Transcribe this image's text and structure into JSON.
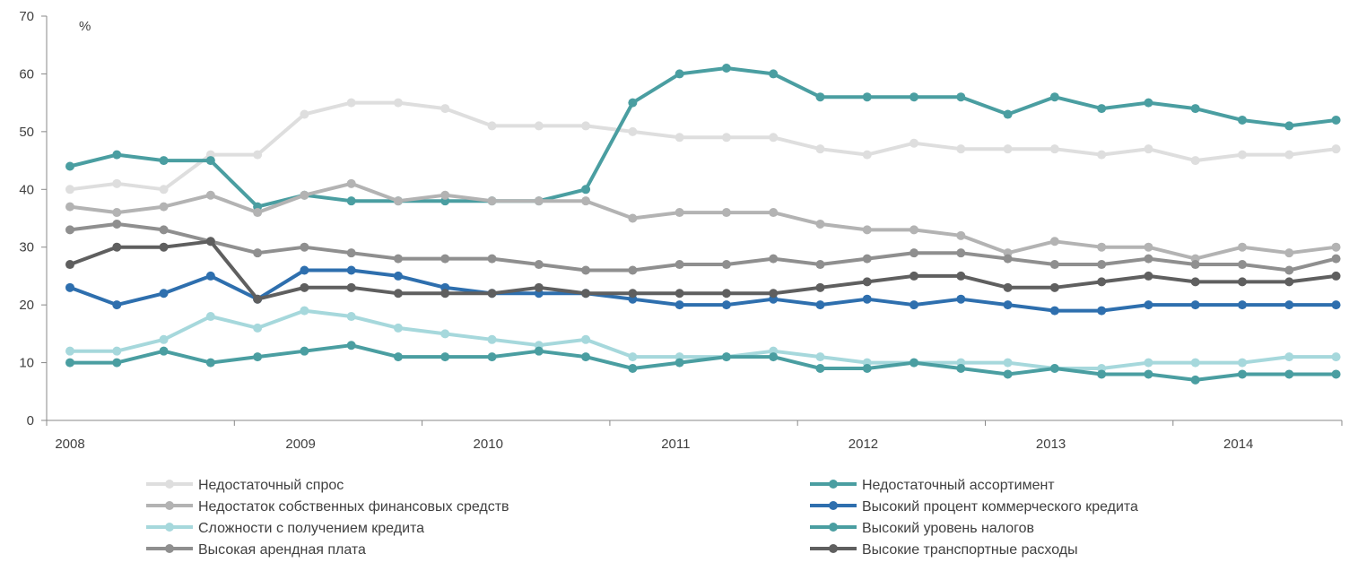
{
  "chart_data": {
    "type": "line",
    "unit_label": "%",
    "ylim": [
      0,
      70
    ],
    "y_ticks": [
      0,
      10,
      20,
      30,
      40,
      50,
      60,
      70
    ],
    "x_tick_labels": [
      "2008",
      "2009",
      "2010",
      "2011",
      "2012",
      "2013",
      "2014"
    ],
    "x_points_per_year": 4,
    "grid": false,
    "legend_position": "bottom",
    "series": [
      {
        "name": "Недостаточный спрос",
        "color": "#dedede",
        "values": [
          40,
          41,
          40,
          46,
          46,
          53,
          55,
          55,
          54,
          51,
          51,
          51,
          50,
          49,
          49,
          49,
          47,
          46,
          48,
          47,
          47,
          47,
          46,
          47,
          45,
          46,
          46,
          47
        ]
      },
      {
        "name": "Недостаточный ассортимент",
        "color": "#4a9ea1",
        "values": [
          44,
          46,
          45,
          45,
          37,
          39,
          38,
          38,
          38,
          38,
          38,
          40,
          55,
          60,
          61,
          60,
          56,
          56,
          56,
          56,
          53,
          56,
          54,
          55,
          54,
          52,
          51,
          52
        ]
      },
      {
        "name": "Недостаток собственных финансовых средств",
        "color": "#b3b3b3",
        "values": [
          37,
          36,
          37,
          39,
          36,
          39,
          41,
          38,
          39,
          38,
          38,
          38,
          35,
          36,
          36,
          36,
          34,
          33,
          33,
          32,
          29,
          31,
          30,
          30,
          28,
          30,
          29,
          30
        ]
      },
      {
        "name": "Высокий процент коммерческого кредита",
        "color": "#2e6fae",
        "values": [
          23,
          20,
          22,
          25,
          21,
          26,
          26,
          25,
          23,
          22,
          22,
          22,
          21,
          20,
          20,
          21,
          20,
          21,
          20,
          21,
          20,
          19,
          19,
          20,
          20,
          20,
          20,
          20
        ]
      },
      {
        "name": "Сложности с получением кредита",
        "color": "#a6d8dc",
        "values": [
          12,
          12,
          14,
          18,
          16,
          19,
          18,
          16,
          15,
          14,
          13,
          14,
          11,
          11,
          11,
          12,
          11,
          10,
          10,
          10,
          10,
          9,
          9,
          10,
          10,
          10,
          11,
          11
        ]
      },
      {
        "name": "Высокий  уровень налогов",
        "color": "#4a9ea1",
        "values": [
          10,
          10,
          12,
          10,
          11,
          12,
          13,
          11,
          11,
          11,
          12,
          11,
          9,
          10,
          11,
          11,
          9,
          9,
          10,
          9,
          8,
          9,
          8,
          8,
          7,
          8,
          8,
          8
        ]
      },
      {
        "name": "Высокая арендная плата",
        "color": "#8f8f8f",
        "values": [
          33,
          34,
          33,
          31,
          29,
          30,
          29,
          28,
          28,
          28,
          27,
          26,
          26,
          27,
          27,
          28,
          27,
          28,
          29,
          29,
          28,
          27,
          27,
          28,
          27,
          27,
          26,
          28
        ]
      },
      {
        "name": "Высокие транспортные расходы",
        "color": "#5f5f5f",
        "values": [
          27,
          30,
          30,
          31,
          21,
          23,
          23,
          22,
          22,
          22,
          23,
          22,
          22,
          22,
          22,
          22,
          23,
          24,
          25,
          25,
          23,
          23,
          24,
          25,
          24,
          24,
          24,
          25
        ]
      }
    ]
  }
}
